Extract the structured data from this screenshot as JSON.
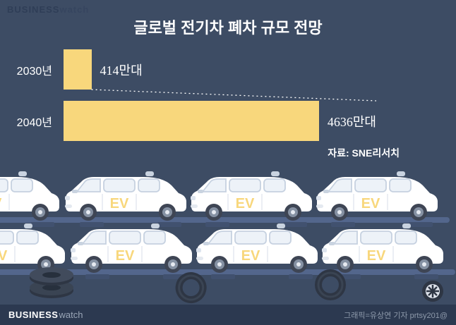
{
  "page": {
    "brand_bold": "BUSINESS",
    "brand_light": "watch",
    "footer_credit": "그래픽=유상연 기자 prtsy201@",
    "colors": {
      "background": "#3d4c64",
      "bar_fill": "#f8d77c",
      "footer_bg": "#2c3950",
      "text": "#ffffff",
      "muted": "#8e9aab",
      "watermark": "#2f3e57",
      "ev_text": "#f8d77c"
    }
  },
  "chart_data": {
    "type": "bar",
    "orientation": "horizontal",
    "title": "글로벌 전기차 폐차 규모 전망",
    "categories": [
      "2030년",
      "2040년"
    ],
    "values": [
      414,
      4636
    ],
    "value_labels": [
      "414만대",
      "4636만대"
    ],
    "unit": "만대",
    "xlim": [
      0,
      4636
    ],
    "grid": false,
    "legend": false,
    "source": "자료: SNE리서치"
  },
  "illustration": {
    "ev_label": "EV",
    "car_rows": 2,
    "cars_per_row": 4
  }
}
